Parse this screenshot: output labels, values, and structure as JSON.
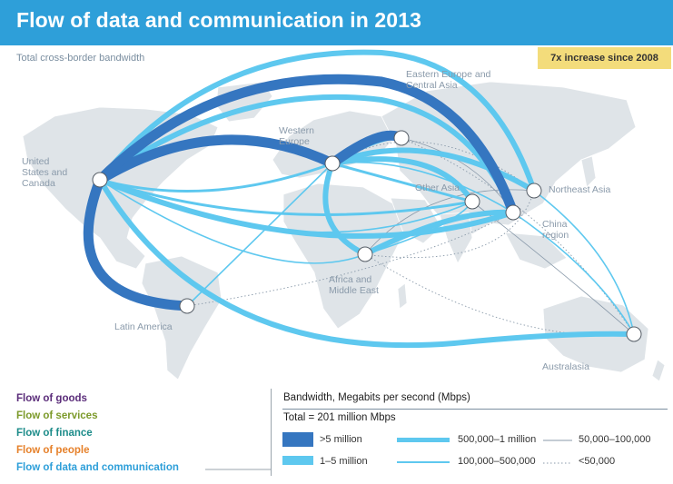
{
  "header": {
    "title": "Flow of data and communication in 2013"
  },
  "subtitle": "Total cross-border bandwidth",
  "badge": "7x increase since 2008",
  "regions": {
    "us_canada": "United States and Canada",
    "western_europe": "Western Europe",
    "eastern_europe": "Eastern Europe and Central Asia",
    "other_asia": "Other Asia",
    "northeast_asia": "Northeast Asia",
    "china": "China region",
    "africa": "Africa and Middle East",
    "latin_america": "Latin America",
    "australasia": "Australasia"
  },
  "flows_nav": [
    {
      "label": "Flow of goods",
      "color": "#5b2d7a"
    },
    {
      "label": "Flow of services",
      "color": "#7c9a2a"
    },
    {
      "label": "Flow of finance",
      "color": "#1d8c8a"
    },
    {
      "label": "Flow of people",
      "color": "#e6812b"
    },
    {
      "label": "Flow of data and communication",
      "color": "#2e9fd9"
    }
  ],
  "legend": {
    "title": "Bandwidth, Megabits per second (Mbps)",
    "total": "Total = 201 million Mbps",
    "items": [
      {
        "label": ">5 million",
        "style": "very-thick",
        "color": "#3576c0"
      },
      {
        "label": "1–5 million",
        "style": "thick",
        "color": "#5ec8ef"
      },
      {
        "label": "500,000–1 million",
        "style": "medium",
        "color": "#5ec8ef"
      },
      {
        "label": "100,000–500,000",
        "style": "thin",
        "color": "#5ec8ef"
      },
      {
        "label": "50,000–100,000",
        "style": "hairline",
        "color": "#8a9aaa"
      },
      {
        "label": "<50,000",
        "style": "dotted",
        "color": "#8a9aaa"
      }
    ]
  },
  "colors": {
    "accent": "#2e9fd9",
    "dark_flow": "#3576c0",
    "light_flow": "#5ec8ef",
    "land": "#dfe4e8",
    "badge": "#f3dc7b"
  }
}
